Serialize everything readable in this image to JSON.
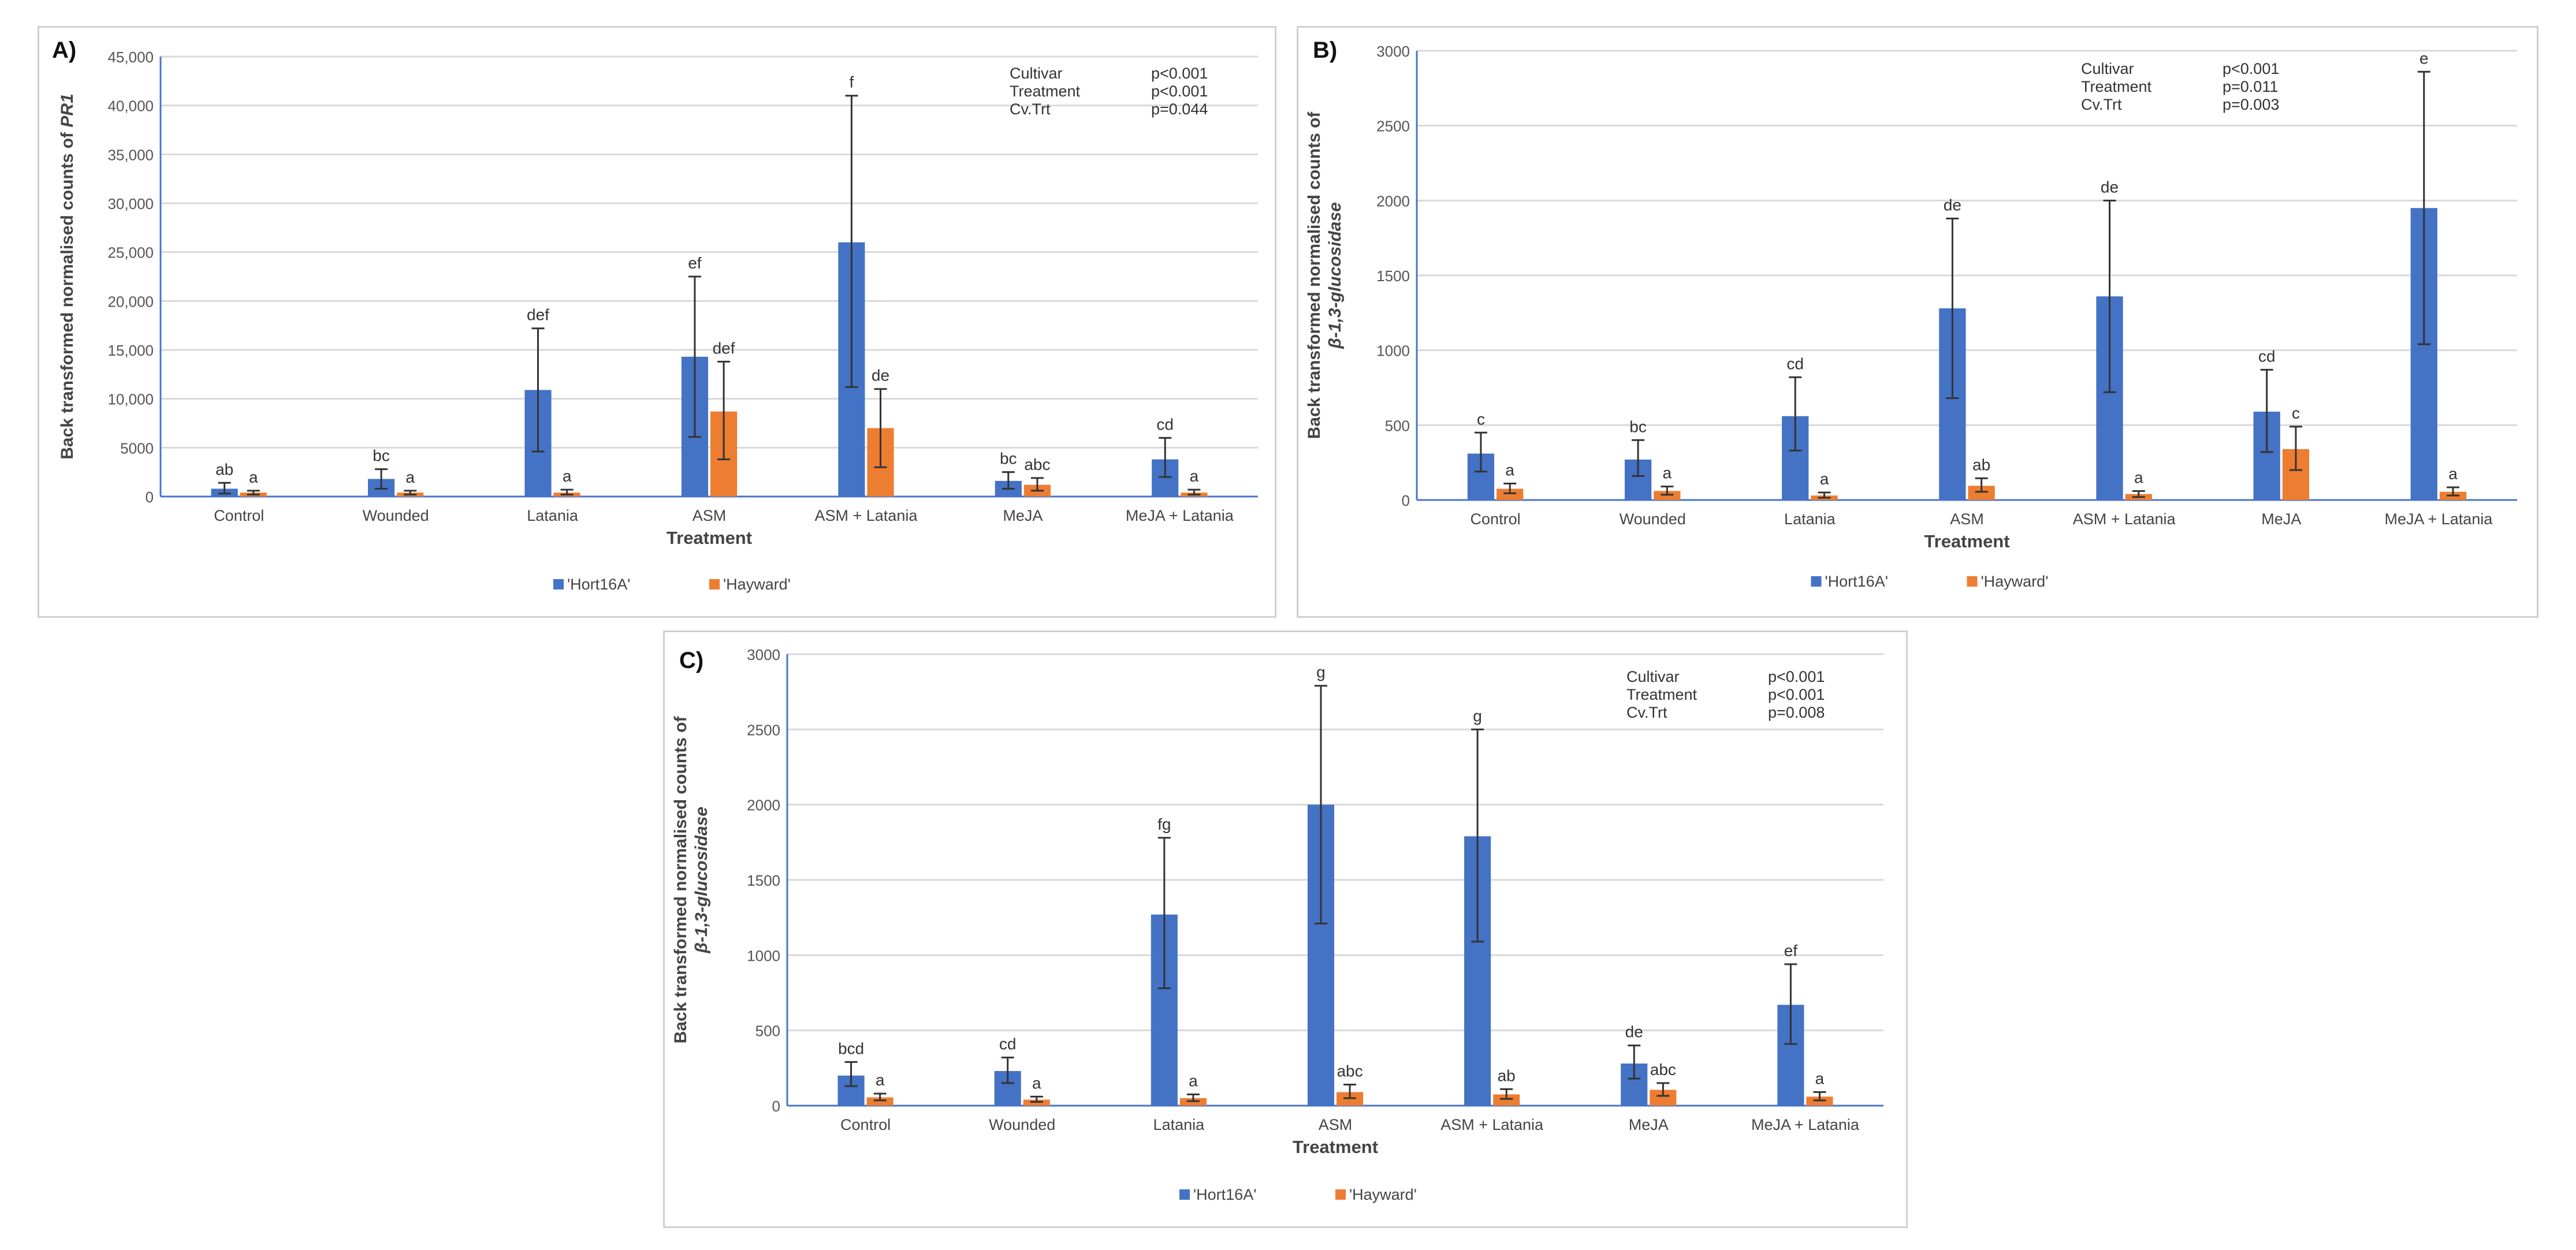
{
  "chart_data": [
    {
      "type": "bar",
      "panel_label": "A)",
      "ylabel_prefix": "Back transformed normalised counts of ",
      "ylabel_gene": "PR1",
      "xlabel": "Treatment",
      "categories": [
        "Control",
        "Wounded",
        "Latania",
        "ASM",
        "ASM + Latania",
        "MeJA",
        "MeJA + Latania"
      ],
      "ylim": [
        0,
        45000
      ],
      "yticks": [
        0,
        5000,
        10000,
        15000,
        20000,
        25000,
        30000,
        35000,
        40000,
        45000
      ],
      "ytick_labels": [
        "0",
        "5000",
        "10,000",
        "15,000",
        "20,000",
        "25,000",
        "30,000",
        "35,000",
        "40,000",
        "45,000"
      ],
      "series": [
        {
          "name": "'Hort16A'",
          "color": "#4472C4",
          "values": [
            800,
            1800,
            10900,
            14300,
            26000,
            1600,
            3800
          ],
          "err_low": [
            300,
            800,
            4600,
            6100,
            11200,
            800,
            2000
          ],
          "err_high": [
            1400,
            2800,
            17200,
            22500,
            41000,
            2500,
            6000
          ],
          "labels": [
            "ab",
            "bc",
            "def",
            "ef",
            "f",
            "bc",
            "cd"
          ]
        },
        {
          "name": "'Hayward'",
          "color": "#ED7D31",
          "values": [
            400,
            400,
            400,
            8700,
            7000,
            1200,
            400
          ],
          "err_low": [
            200,
            200,
            200,
            3800,
            3000,
            600,
            200
          ],
          "err_high": [
            600,
            600,
            700,
            13800,
            11000,
            1900,
            700
          ],
          "labels": [
            "a",
            "a",
            "a",
            "def",
            "de",
            "abc",
            "a"
          ]
        }
      ],
      "stats": [
        {
          "term": "Cultivar",
          "p": "p<0.001"
        },
        {
          "term": "Treatment",
          "p": "p<0.001"
        },
        {
          "term": "Cv.Trt",
          "p": "p=0.044"
        }
      ]
    },
    {
      "type": "bar",
      "panel_label": "B)",
      "ylabel_prefix": "Back transformed normalised counts of",
      "ylabel_gene": "β-1,3-glucosidase",
      "xlabel": "Treatment",
      "categories": [
        "Control",
        "Wounded",
        "Latania",
        "ASM",
        "ASM + Latania",
        "MeJA",
        "MeJA + Latania"
      ],
      "ylim": [
        0,
        3000
      ],
      "yticks": [
        0,
        500,
        1000,
        1500,
        2000,
        2500,
        3000
      ],
      "ytick_labels": [
        "0",
        "500",
        "1000",
        "1500",
        "2000",
        "2500",
        "3000"
      ],
      "series": [
        {
          "name": "'Hort16A'",
          "color": "#4472C4",
          "values": [
            310,
            270,
            560,
            1280,
            1360,
            590,
            1950
          ],
          "err_low": [
            190,
            160,
            330,
            680,
            720,
            320,
            1040
          ],
          "err_high": [
            450,
            400,
            820,
            1880,
            2000,
            870,
            2860
          ],
          "labels": [
            "c",
            "bc",
            "cd",
            "de",
            "de",
            "cd",
            "e"
          ]
        },
        {
          "name": "'Hayward'",
          "color": "#ED7D31",
          "values": [
            75,
            60,
            30,
            95,
            40,
            340,
            55
          ],
          "err_low": [
            45,
            35,
            15,
            55,
            20,
            200,
            30
          ],
          "err_high": [
            110,
            90,
            50,
            145,
            60,
            490,
            85
          ],
          "labels": [
            "a",
            "a",
            "a",
            "ab",
            "a",
            "c",
            "a"
          ]
        }
      ],
      "stats": [
        {
          "term": "Cultivar",
          "p": "p<0.001"
        },
        {
          "term": "Treatment",
          "p": "p=0.011"
        },
        {
          "term": "Cv.Trt",
          "p": "p=0.003"
        }
      ]
    },
    {
      "type": "bar",
      "panel_label": "C)",
      "ylabel_prefix": "Back transformed normalised counts of",
      "ylabel_gene": "β-1,3-glucosidase",
      "xlabel": "Treatment",
      "categories": [
        "Control",
        "Wounded",
        "Latania",
        "ASM",
        "ASM + Latania",
        "MeJA",
        "MeJA + Latania"
      ],
      "ylim": [
        0,
        3000
      ],
      "yticks": [
        0,
        500,
        1000,
        1500,
        2000,
        2500,
        3000
      ],
      "ytick_labels": [
        "0",
        "500",
        "1000",
        "1500",
        "2000",
        "2500",
        "3000"
      ],
      "series": [
        {
          "name": "'Hort16A'",
          "color": "#4472C4",
          "values": [
            200,
            230,
            1270,
            2000,
            1790,
            280,
            670
          ],
          "err_low": [
            130,
            150,
            780,
            1210,
            1090,
            180,
            410
          ],
          "err_high": [
            290,
            320,
            1780,
            2790,
            2500,
            400,
            940
          ],
          "labels": [
            "bcd",
            "cd",
            "fg",
            "g",
            "g",
            "de",
            "ef"
          ]
        },
        {
          "name": "'Hayward'",
          "color": "#ED7D31",
          "values": [
            55,
            40,
            50,
            90,
            75,
            105,
            60
          ],
          "err_low": [
            35,
            25,
            30,
            50,
            45,
            65,
            35
          ],
          "err_high": [
            80,
            60,
            75,
            140,
            110,
            150,
            90
          ],
          "labels": [
            "a",
            "a",
            "a",
            "abc",
            "ab",
            "abc",
            "a"
          ]
        }
      ],
      "stats": [
        {
          "term": "Cultivar",
          "p": "p<0.001"
        },
        {
          "term": "Treatment",
          "p": "p<0.001"
        },
        {
          "term": "Cv.Trt",
          "p": "p=0.008"
        }
      ]
    }
  ]
}
